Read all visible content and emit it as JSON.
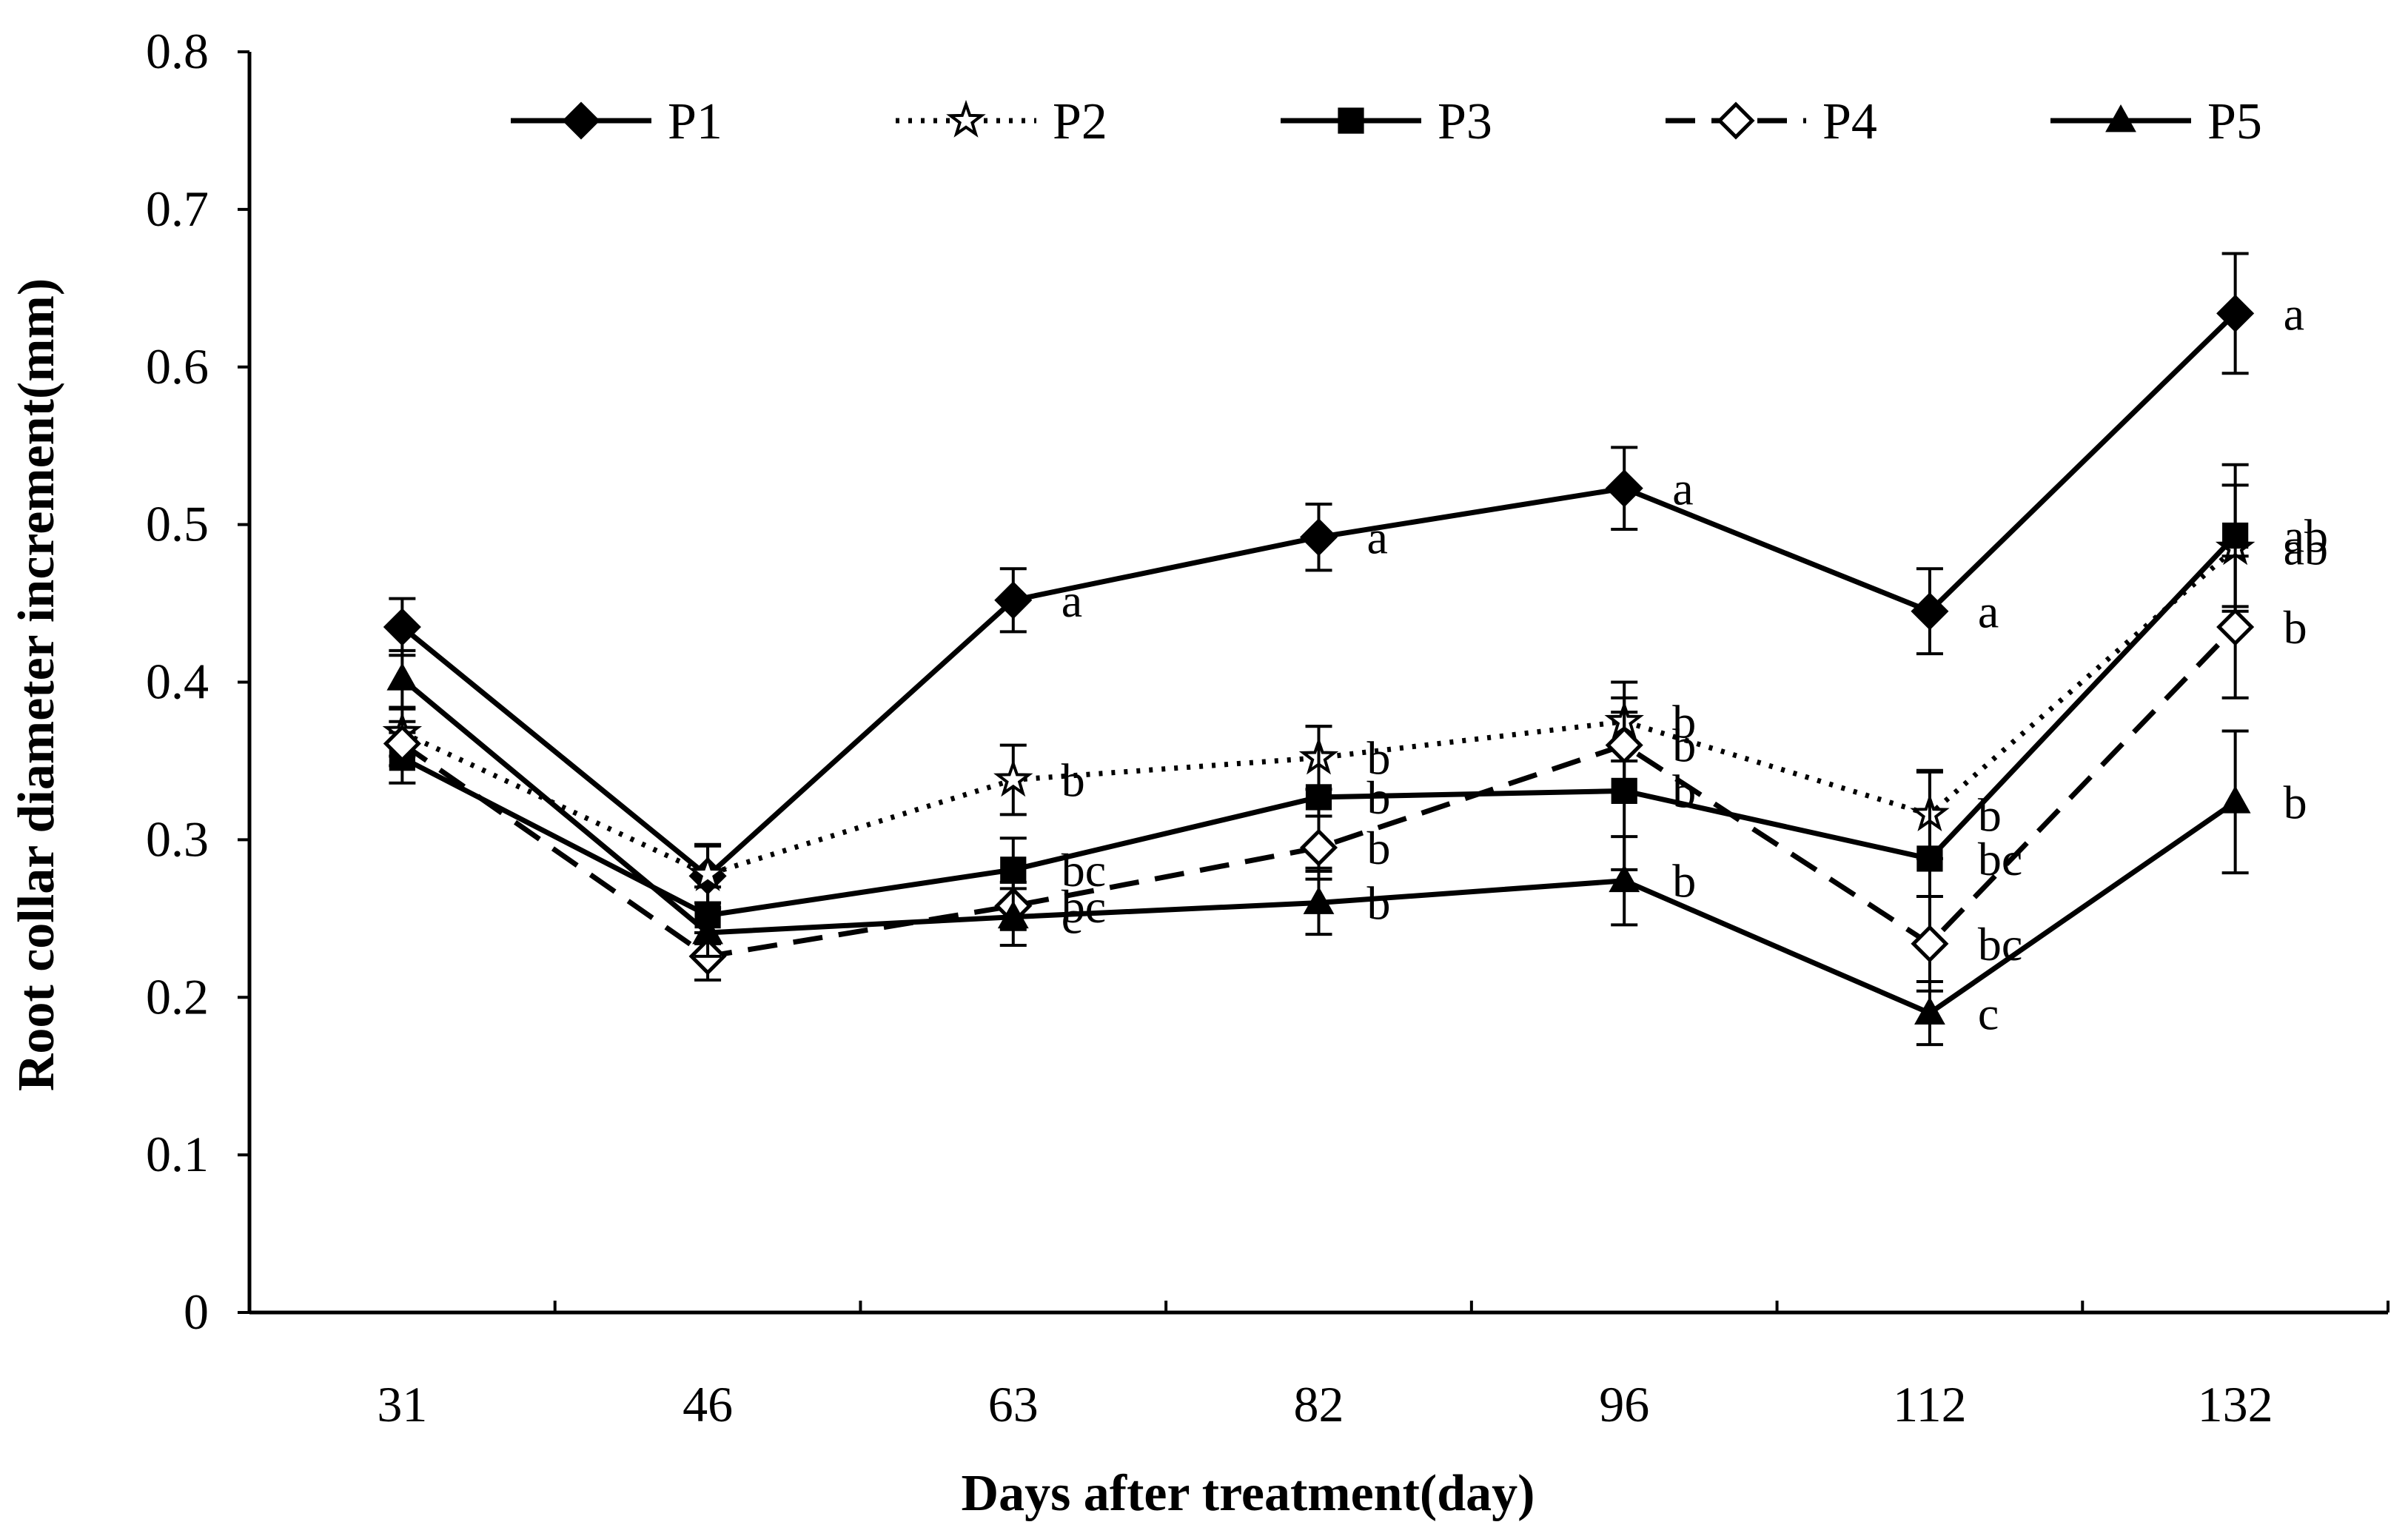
{
  "chart_data": {
    "type": "line",
    "xlabel": "Days after treatment(day)",
    "ylabel": "Root collar diameter increment(mm)",
    "categories": [
      "31",
      "46",
      "63",
      "82",
      "96",
      "112",
      "132"
    ],
    "ylim": [
      0,
      0.8
    ],
    "yticks": [
      0,
      0.1,
      0.2,
      0.3,
      0.4,
      0.5,
      0.6,
      0.7,
      0.8
    ],
    "ytick_labels": [
      "0",
      "0.1",
      "0.2",
      "0.3",
      "0.4",
      "0.5",
      "0.6",
      "0.7",
      "0.8"
    ],
    "grid": false,
    "legend_position": "top",
    "series": [
      {
        "name": "P1",
        "marker": "diamond-filled",
        "dash": "solid",
        "values": [
          0.435,
          0.277,
          0.452,
          0.492,
          0.523,
          0.445,
          0.634
        ],
        "errors": [
          0.018,
          0.02,
          0.02,
          0.021,
          0.026,
          0.027,
          0.038
        ],
        "labels": [
          "",
          "",
          "a",
          "a",
          "a",
          "a",
          "a"
        ]
      },
      {
        "name": "P2",
        "marker": "star",
        "dash": "dotted",
        "values": [
          0.368,
          0.278,
          0.338,
          0.352,
          0.375,
          0.316,
          0.485
        ],
        "errors": [
          0.015,
          0.018,
          0.022,
          0.02,
          0.025,
          0.028,
          0.04
        ],
        "labels": [
          "",
          "",
          "b",
          "b",
          "b",
          "b",
          "ab"
        ]
      },
      {
        "name": "P3",
        "marker": "square-filled",
        "dash": "solid",
        "values": [
          0.352,
          0.252,
          0.281,
          0.327,
          0.331,
          0.288,
          0.493
        ],
        "errors": [
          0.016,
          0.018,
          0.02,
          0.045,
          0.05,
          0.055,
          0.045
        ],
        "labels": [
          "",
          "",
          "bc",
          "b",
          "b",
          "bc",
          "ab"
        ]
      },
      {
        "name": "P4",
        "marker": "diamond-open",
        "dash": "dashed",
        "values": [
          0.361,
          0.226,
          0.258,
          0.295,
          0.36,
          0.234,
          0.435
        ],
        "errors": [
          0.014,
          0.015,
          0.015,
          0.02,
          0.03,
          0.03,
          0.045
        ],
        "labels": [
          "",
          "",
          "bc",
          "b",
          "b",
          "bc",
          "b"
        ]
      },
      {
        "name": "P5",
        "marker": "triangle-filled",
        "dash": "solid",
        "values": [
          0.402,
          0.241,
          0.251,
          0.26,
          0.274,
          0.19,
          0.324
        ],
        "errors": [
          0.018,
          0.015,
          0.018,
          0.02,
          0.028,
          0.02,
          0.045
        ],
        "labels": [
          "",
          "",
          "c",
          "b",
          "b",
          "c",
          "b"
        ]
      }
    ]
  }
}
